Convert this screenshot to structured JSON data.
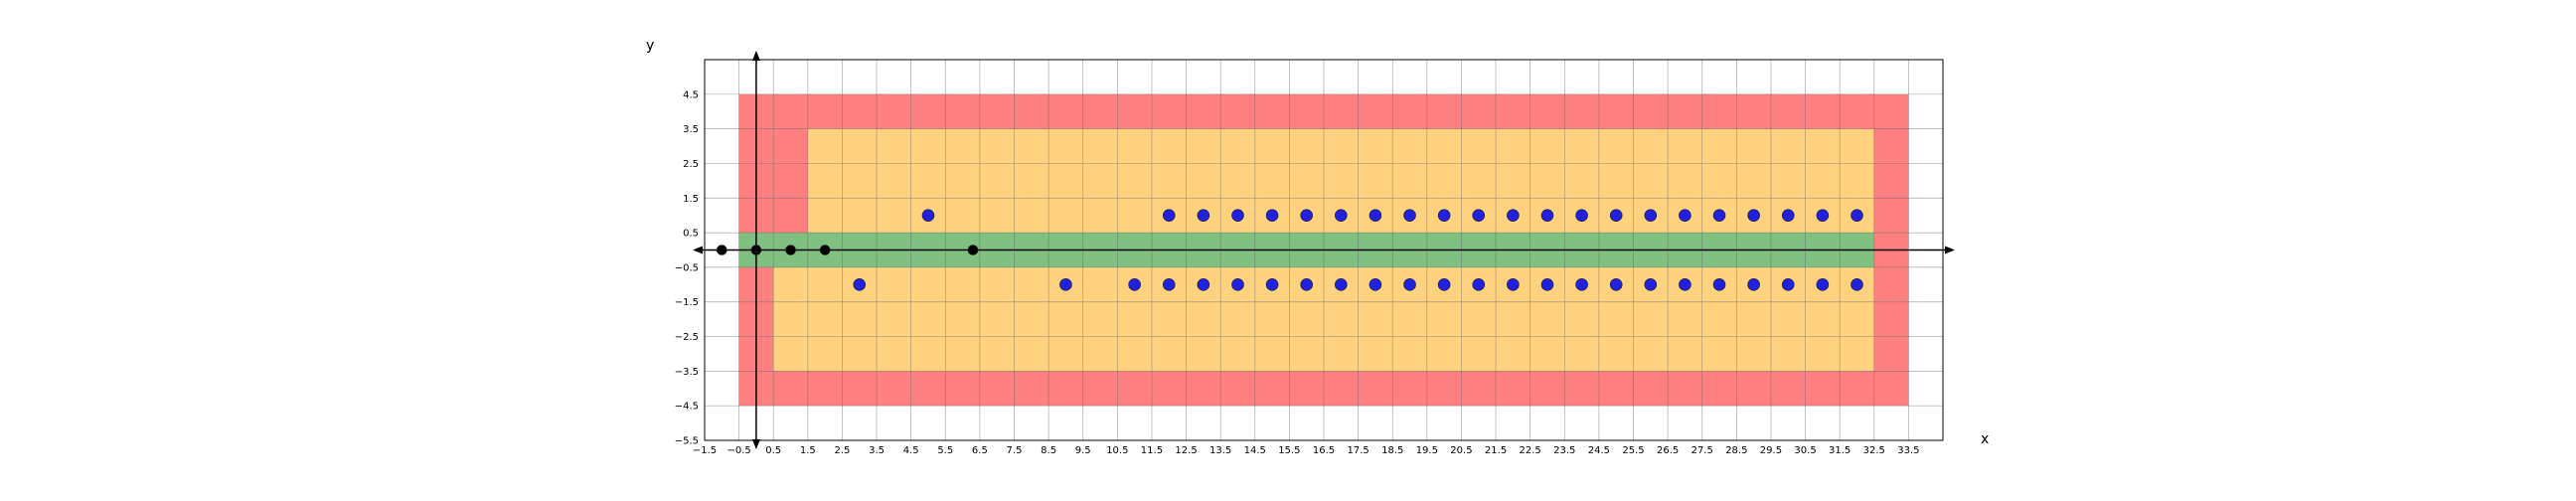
{
  "chart_data": {
    "type": "scatter",
    "title": "",
    "xlabel": "x",
    "ylabel": "y",
    "xlim": [
      -1.5,
      34.5
    ],
    "ylim": [
      -5.5,
      5.5
    ],
    "grid": true,
    "x_ticks": [
      "−1.5",
      "−0.5",
      "0.5",
      "1.5",
      "2.5",
      "3.5",
      "4.5",
      "5.5",
      "6.5",
      "7.5",
      "8.5",
      "9.5",
      "10.5",
      "11.5",
      "12.5",
      "13.5",
      "14.5",
      "15.5",
      "16.5",
      "17.5",
      "18.5",
      "19.5",
      "20.5",
      "21.5",
      "22.5",
      "23.5",
      "24.5",
      "25.5",
      "26.5",
      "27.5",
      "28.5",
      "29.5",
      "30.5",
      "31.5",
      "32.5",
      "33.5"
    ],
    "y_ticks": [
      "4.5",
      "3.5",
      "2.5",
      "1.5",
      "0.5",
      "−0.5",
      "−1.5",
      "−2.5",
      "−3.5",
      "−4.5",
      "−5.5"
    ],
    "regions": [
      {
        "color": "#ff8080",
        "polygon": [
          [
            -0.5,
            4.5
          ],
          [
            33.5,
            4.5
          ],
          [
            33.5,
            -4.5
          ],
          [
            -0.5,
            -4.5
          ]
        ]
      },
      {
        "color": "#ffd280",
        "polygon": [
          [
            1.5,
            3.5
          ],
          [
            32.5,
            3.5
          ],
          [
            32.5,
            -3.5
          ],
          [
            0.5,
            -3.5
          ],
          [
            0.5,
            -0.5
          ],
          [
            1.5,
            -0.5
          ]
        ]
      },
      {
        "color": "#80c080",
        "polygon": [
          [
            -0.5,
            0.5
          ],
          [
            32.5,
            0.5
          ],
          [
            32.5,
            -0.5
          ],
          [
            -0.5,
            -0.5
          ]
        ]
      }
    ],
    "series": [
      {
        "color": "#000000",
        "points": [
          [
            -1,
            0
          ],
          [
            0,
            0
          ],
          [
            1,
            0
          ],
          [
            2,
            0
          ],
          [
            6.3,
            0
          ]
        ]
      },
      {
        "color": "#2020dd",
        "points": [
          [
            5,
            1
          ],
          [
            12,
            1
          ],
          [
            13,
            1
          ],
          [
            14,
            1
          ],
          [
            15,
            1
          ],
          [
            16,
            1
          ],
          [
            17,
            1
          ],
          [
            18,
            1
          ],
          [
            19,
            1
          ],
          [
            20,
            1
          ],
          [
            21,
            1
          ],
          [
            22,
            1
          ],
          [
            23,
            1
          ],
          [
            24,
            1
          ],
          [
            25,
            1
          ],
          [
            26,
            1
          ],
          [
            27,
            1
          ],
          [
            28,
            1
          ],
          [
            29,
            1
          ],
          [
            30,
            1
          ],
          [
            31,
            1
          ],
          [
            32,
            1
          ],
          [
            3,
            -1
          ],
          [
            9,
            -1
          ],
          [
            11,
            -1
          ],
          [
            12,
            -1
          ],
          [
            13,
            -1
          ],
          [
            14,
            -1
          ],
          [
            15,
            -1
          ],
          [
            16,
            -1
          ],
          [
            17,
            -1
          ],
          [
            18,
            -1
          ],
          [
            19,
            -1
          ],
          [
            20,
            -1
          ],
          [
            21,
            -1
          ],
          [
            22,
            -1
          ],
          [
            23,
            -1
          ],
          [
            24,
            -1
          ],
          [
            25,
            -1
          ],
          [
            26,
            -1
          ],
          [
            27,
            -1
          ],
          [
            28,
            -1
          ],
          [
            29,
            -1
          ],
          [
            30,
            -1
          ],
          [
            31,
            -1
          ],
          [
            32,
            -1
          ]
        ]
      }
    ]
  }
}
